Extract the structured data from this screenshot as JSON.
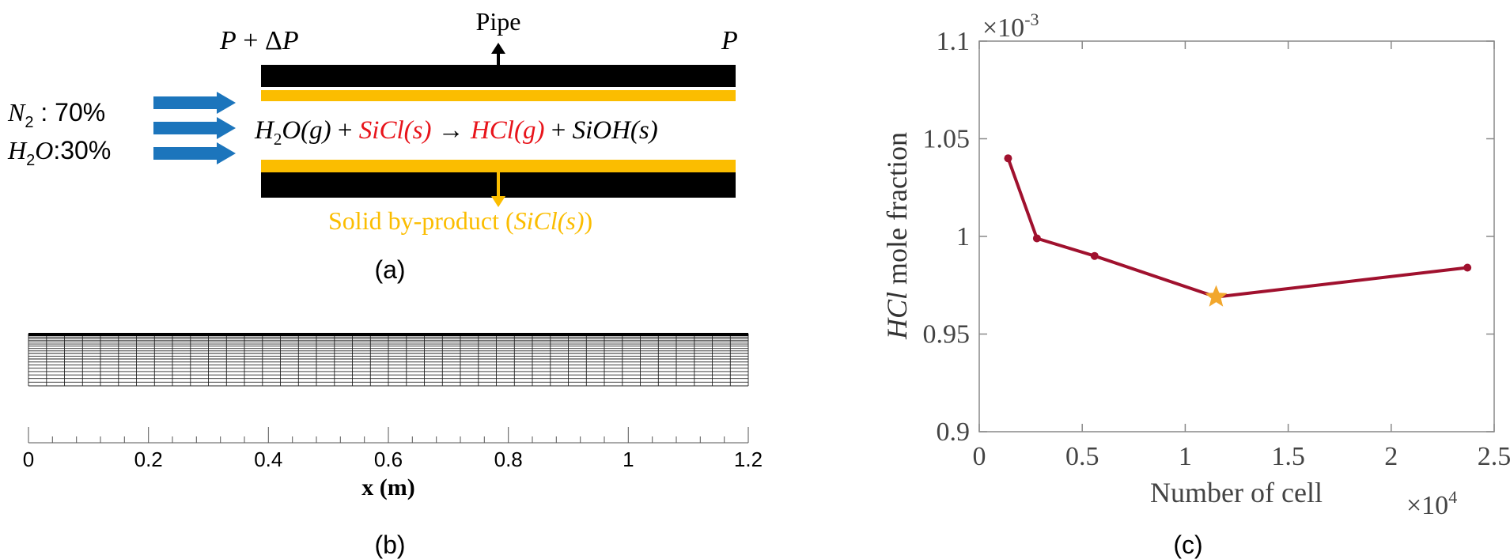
{
  "panel_a": {
    "caption": "(a)",
    "pipe_label": "Pipe",
    "inlet_pressure": {
      "base": "P",
      "op": " + Δ",
      "var": "P"
    },
    "outlet_pressure": "P",
    "feed": {
      "n2": {
        "species": "N",
        "sub": "2",
        "sep": " :  ",
        "value": "70%"
      },
      "h2o": {
        "species": "H",
        "sub": "2",
        "rest": "O",
        "sep": ":",
        "value": "30%"
      }
    },
    "reaction": {
      "reactant1": "O(g)",
      "plus": " + ",
      "reactant2": "SiCl(s)",
      "arrow": " → ",
      "product1": "HCl(g)",
      "product2": "SiOH(s)"
    },
    "byproduct": {
      "label": "Solid by-product (",
      "species": "SiCl(s)",
      "close": ")"
    },
    "colors": {
      "wall": "#000000",
      "liner": "#fbbd00",
      "flow_arrow": "#1c75bc",
      "highlight": "#e8141b"
    }
  },
  "panel_b": {
    "caption": "(b)",
    "xlabel": "x (m)",
    "ticks": [
      "0",
      "0.2",
      "0.4",
      "0.6",
      "0.8",
      "1",
      "1.2"
    ]
  },
  "panel_c": {
    "caption": "(c)",
    "ylabel": {
      "species": "HCl",
      "rest": " mole fraction"
    },
    "xlabel": "Number of cell",
    "y_exponent": {
      "base": "×10",
      "power": "-3"
    },
    "x_exponent": {
      "base": "×10",
      "power": "4"
    }
  },
  "chart_data": [
    {
      "type": "line",
      "xlabel": "Number of cell",
      "ylabel": "HCl mole fraction",
      "x_scale": "×10^4",
      "y_scale": "×10^-3",
      "xlim": [
        0,
        2.5
      ],
      "ylim": [
        0.9,
        1.1
      ],
      "x_ticks": [
        "0",
        "0.5",
        "1",
        "1.5",
        "2",
        "2.5"
      ],
      "y_ticks": [
        "0.9",
        "0.95",
        "1",
        "1.05",
        "1.1"
      ],
      "x": [
        0.14,
        0.28,
        0.56,
        1.15,
        2.37
      ],
      "y": [
        1.04,
        0.999,
        0.99,
        0.969,
        0.984
      ],
      "highlight_index": 3,
      "grid": false,
      "line_color": "#a0112e",
      "highlight_color": "#f2a72d"
    }
  ]
}
